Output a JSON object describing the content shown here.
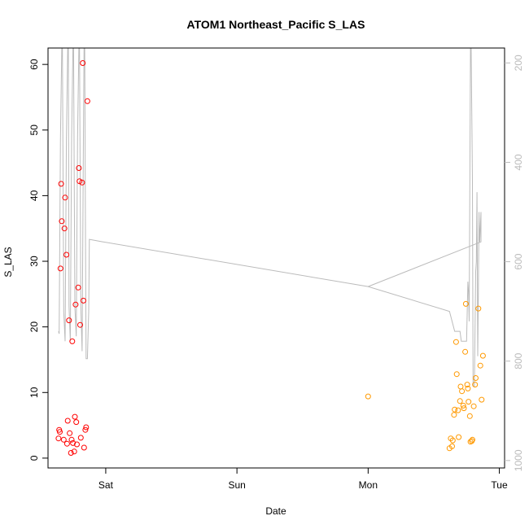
{
  "chart_data": {
    "type": "scatter",
    "title": "ATOM1 Northeast_Pacific S_LAS",
    "xlabel": "Date",
    "ylabel": "S_LAS",
    "x_range": [
      -0.44,
      3.04
    ],
    "ylim": [
      -1.5,
      62.5
    ],
    "x_ticks": [
      {
        "label": "Sat",
        "value": 0
      },
      {
        "label": "Sun",
        "value": 1
      },
      {
        "label": "Mon",
        "value": 2
      },
      {
        "label": "Tue",
        "value": 3
      }
    ],
    "y_ticks": [
      0,
      10,
      20,
      30,
      40,
      50,
      60
    ],
    "y2_ticks": [
      200,
      400,
      600,
      800,
      1000
    ],
    "y2_range": [
      1015,
      170
    ],
    "y2_reversed": true,
    "grid": false,
    "series": [
      {
        "color": "#ff0000",
        "points": [
          {
            "x": -0.36,
            "y": 3.0
          },
          {
            "x": -0.355,
            "y": 4.3
          },
          {
            "x": -0.35,
            "y": 4.0
          },
          {
            "x": -0.345,
            "y": 28.9
          },
          {
            "x": -0.34,
            "y": 41.8
          },
          {
            "x": -0.335,
            "y": 36.1
          },
          {
            "x": -0.32,
            "y": 2.8
          },
          {
            "x": -0.315,
            "y": 35.0
          },
          {
            "x": -0.31,
            "y": 39.7
          },
          {
            "x": -0.3,
            "y": 31.0
          },
          {
            "x": -0.295,
            "y": 2.2
          },
          {
            "x": -0.29,
            "y": 5.7
          },
          {
            "x": -0.28,
            "y": 21.0
          },
          {
            "x": -0.275,
            "y": 3.8
          },
          {
            "x": -0.265,
            "y": 0.8
          },
          {
            "x": -0.26,
            "y": 2.8
          },
          {
            "x": -0.255,
            "y": 17.8
          },
          {
            "x": -0.25,
            "y": 2.3
          },
          {
            "x": -0.24,
            "y": 1.0
          },
          {
            "x": -0.235,
            "y": 6.3
          },
          {
            "x": -0.23,
            "y": 23.4
          },
          {
            "x": -0.225,
            "y": 5.5
          },
          {
            "x": -0.22,
            "y": 2.1
          },
          {
            "x": -0.21,
            "y": 26.0
          },
          {
            "x": -0.205,
            "y": 44.2
          },
          {
            "x": -0.2,
            "y": 42.2
          },
          {
            "x": -0.195,
            "y": 20.3
          },
          {
            "x": -0.19,
            "y": 3.1
          },
          {
            "x": -0.18,
            "y": 42.0
          },
          {
            "x": -0.175,
            "y": 60.2
          },
          {
            "x": -0.17,
            "y": 24.0
          },
          {
            "x": -0.165,
            "y": 1.6
          },
          {
            "x": -0.155,
            "y": 4.3
          },
          {
            "x": -0.15,
            "y": 4.7
          },
          {
            "x": -0.14,
            "y": 54.4
          }
        ]
      },
      {
        "color": "#ff9900",
        "points": [
          {
            "x": 2.0,
            "y": 9.4
          },
          {
            "x": 2.62,
            "y": 1.5
          },
          {
            "x": 2.63,
            "y": 3.0
          },
          {
            "x": 2.64,
            "y": 1.8
          },
          {
            "x": 2.645,
            "y": 2.7
          },
          {
            "x": 2.655,
            "y": 6.6
          },
          {
            "x": 2.66,
            "y": 7.4
          },
          {
            "x": 2.67,
            "y": 17.7
          },
          {
            "x": 2.675,
            "y": 12.8
          },
          {
            "x": 2.685,
            "y": 7.3
          },
          {
            "x": 2.69,
            "y": 3.2
          },
          {
            "x": 2.7,
            "y": 8.7
          },
          {
            "x": 2.705,
            "y": 10.9
          },
          {
            "x": 2.715,
            "y": 10.2
          },
          {
            "x": 2.725,
            "y": 8.0
          },
          {
            "x": 2.73,
            "y": 7.6
          },
          {
            "x": 2.74,
            "y": 16.2
          },
          {
            "x": 2.745,
            "y": 23.5
          },
          {
            "x": 2.755,
            "y": 11.2
          },
          {
            "x": 2.76,
            "y": 10.6
          },
          {
            "x": 2.765,
            "y": 8.6
          },
          {
            "x": 2.775,
            "y": 6.4
          },
          {
            "x": 2.78,
            "y": 2.5
          },
          {
            "x": 2.79,
            "y": 2.6
          },
          {
            "x": 2.795,
            "y": 2.8
          },
          {
            "x": 2.805,
            "y": 7.9
          },
          {
            "x": 2.815,
            "y": 11.2
          },
          {
            "x": 2.82,
            "y": 12.2
          },
          {
            "x": 2.84,
            "y": 22.8
          },
          {
            "x": 2.855,
            "y": 14.1
          },
          {
            "x": 2.865,
            "y": 8.9
          },
          {
            "x": 2.875,
            "y": 15.6
          }
        ]
      }
    ],
    "depth_line": {
      "color": "#bbbbbb",
      "axis": "y2",
      "points": [
        {
          "x": -0.36,
          "y": 740
        },
        {
          "x": -0.355,
          "y": 745
        },
        {
          "x": -0.345,
          "y": 350
        },
        {
          "x": -0.335,
          "y": 170
        },
        {
          "x": -0.33,
          "y": 170
        },
        {
          "x": -0.32,
          "y": 700
        },
        {
          "x": -0.31,
          "y": 760
        },
        {
          "x": -0.3,
          "y": 350
        },
        {
          "x": -0.29,
          "y": 170
        },
        {
          "x": -0.285,
          "y": 170
        },
        {
          "x": -0.28,
          "y": 690
        },
        {
          "x": -0.27,
          "y": 760
        },
        {
          "x": -0.26,
          "y": 350
        },
        {
          "x": -0.25,
          "y": 170
        },
        {
          "x": -0.245,
          "y": 170
        },
        {
          "x": -0.235,
          "y": 690
        },
        {
          "x": -0.225,
          "y": 750
        },
        {
          "x": -0.215,
          "y": 350
        },
        {
          "x": -0.205,
          "y": 170
        },
        {
          "x": -0.2,
          "y": 170
        },
        {
          "x": -0.19,
          "y": 690
        },
        {
          "x": -0.18,
          "y": 780
        },
        {
          "x": -0.17,
          "y": 350
        },
        {
          "x": -0.165,
          "y": 170
        },
        {
          "x": -0.16,
          "y": 170
        },
        {
          "x": -0.155,
          "y": 500
        },
        {
          "x": -0.15,
          "y": 795
        },
        {
          "x": -0.14,
          "y": 795
        },
        {
          "x": -0.13,
          "y": 700
        },
        {
          "x": -0.125,
          "y": 555
        },
        {
          "x": -0.02,
          "y": 560
        },
        {
          "x": 2.0,
          "y": 650
        },
        {
          "x": 2.62,
          "y": 700
        },
        {
          "x": 2.63,
          "y": 710
        },
        {
          "x": 2.66,
          "y": 740
        },
        {
          "x": 2.7,
          "y": 740
        },
        {
          "x": 2.71,
          "y": 760
        },
        {
          "x": 2.75,
          "y": 760
        },
        {
          "x": 2.76,
          "y": 640
        },
        {
          "x": 2.765,
          "y": 660
        },
        {
          "x": 2.77,
          "y": 720
        },
        {
          "x": 2.78,
          "y": 170
        },
        {
          "x": 2.785,
          "y": 170
        },
        {
          "x": 2.79,
          "y": 300
        },
        {
          "x": 2.795,
          "y": 440
        },
        {
          "x": 2.8,
          "y": 850
        },
        {
          "x": 2.81,
          "y": 850
        },
        {
          "x": 2.82,
          "y": 620
        },
        {
          "x": 2.825,
          "y": 600
        },
        {
          "x": 2.83,
          "y": 460
        },
        {
          "x": 2.835,
          "y": 790
        },
        {
          "x": 2.84,
          "y": 660
        },
        {
          "x": 2.845,
          "y": 500
        },
        {
          "x": 2.85,
          "y": 560
        },
        {
          "x": 2.86,
          "y": 500
        },
        {
          "x": 2.86,
          "y": 560
        },
        {
          "x": 2.0,
          "y": 650
        }
      ]
    }
  }
}
